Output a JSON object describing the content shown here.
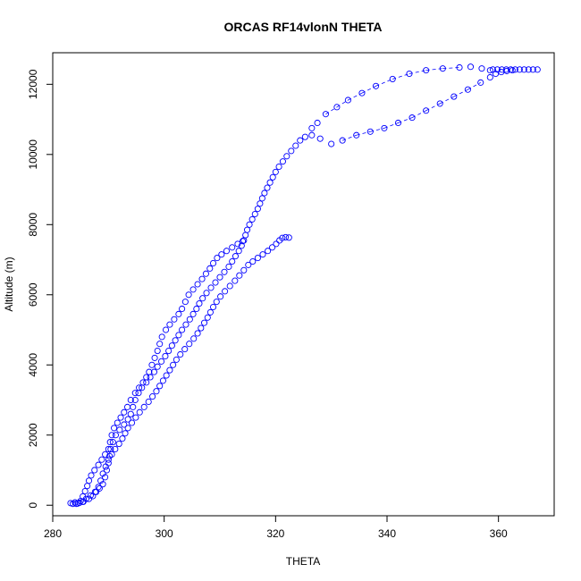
{
  "chart_data": {
    "type": "scatter",
    "title": "ORCAS RF14vlonN THETA",
    "xlabel": "THETA",
    "ylabel": "Altitude (m)",
    "xlim": [
      280,
      370
    ],
    "ylim": [
      -300,
      12900
    ],
    "xticks": [
      280,
      300,
      320,
      340,
      360
    ],
    "yticks": [
      0,
      2000,
      4000,
      6000,
      8000,
      10000,
      12000
    ],
    "grid": false,
    "marker": "open-circle",
    "color": "#0000ff",
    "series": [
      {
        "points": [
          [
            283.2,
            60
          ],
          [
            283.6,
            40
          ],
          [
            284.0,
            80
          ],
          [
            284.5,
            50
          ],
          [
            285.0,
            120
          ],
          [
            285.4,
            250
          ],
          [
            285.8,
            400
          ],
          [
            286.2,
            550
          ],
          [
            286.5,
            700
          ],
          [
            286.9,
            850
          ],
          [
            287.5,
            1000
          ],
          [
            288.2,
            1150
          ],
          [
            288.8,
            1300
          ],
          [
            289.4,
            1450
          ],
          [
            290.0,
            1600
          ],
          [
            290.3,
            1800
          ],
          [
            290.6,
            2000
          ],
          [
            291.0,
            2200
          ],
          [
            291.6,
            2350
          ],
          [
            292.2,
            2500
          ],
          [
            292.8,
            2650
          ],
          [
            293.4,
            2800
          ],
          [
            294.0,
            3000
          ],
          [
            294.8,
            3200
          ],
          [
            295.5,
            3350
          ],
          [
            296.2,
            3500
          ],
          [
            296.8,
            3650
          ],
          [
            297.3,
            3800
          ],
          [
            297.8,
            4000
          ],
          [
            298.3,
            4200
          ],
          [
            298.8,
            4400
          ],
          [
            299.2,
            4600
          ],
          [
            299.6,
            4800
          ],
          [
            300.3,
            5000
          ],
          [
            301.0,
            5150
          ],
          [
            301.8,
            5300
          ],
          [
            302.6,
            5450
          ],
          [
            303.2,
            5600
          ],
          [
            303.8,
            5800
          ],
          [
            304.4,
            6000
          ],
          [
            305.2,
            6150
          ],
          [
            306.0,
            6300
          ],
          [
            306.8,
            6450
          ],
          [
            307.5,
            6600
          ],
          [
            308.2,
            6750
          ],
          [
            308.8,
            6900
          ],
          [
            309.5,
            7050
          ],
          [
            310.3,
            7150
          ],
          [
            311.2,
            7250
          ],
          [
            312.2,
            7350
          ],
          [
            313.2,
            7450
          ],
          [
            314.1,
            7530
          ]
        ]
      },
      {
        "points": [
          [
            284.2,
            40
          ],
          [
            284.8,
            70
          ],
          [
            285.4,
            100
          ],
          [
            286.0,
            180
          ],
          [
            286.8,
            280
          ],
          [
            287.6,
            380
          ],
          [
            288.4,
            480
          ],
          [
            289.0,
            600
          ],
          [
            289.4,
            800
          ],
          [
            289.7,
            1000
          ],
          [
            290.0,
            1200
          ],
          [
            290.2,
            1400
          ],
          [
            290.4,
            1600
          ],
          [
            290.8,
            1800
          ],
          [
            291.3,
            2000
          ],
          [
            292.0,
            2150
          ],
          [
            292.8,
            2300
          ],
          [
            293.5,
            2450
          ],
          [
            294.0,
            2600
          ],
          [
            294.4,
            2800
          ],
          [
            294.8,
            3000
          ],
          [
            295.4,
            3200
          ],
          [
            296.0,
            3350
          ],
          [
            296.8,
            3500
          ],
          [
            297.5,
            3650
          ],
          [
            298.2,
            3800
          ],
          [
            298.8,
            3950
          ],
          [
            299.5,
            4100
          ],
          [
            300.2,
            4250
          ],
          [
            300.8,
            4400
          ],
          [
            301.4,
            4550
          ],
          [
            302.0,
            4700
          ],
          [
            302.6,
            4850
          ],
          [
            303.2,
            5000
          ],
          [
            303.9,
            5150
          ],
          [
            304.6,
            5300
          ],
          [
            305.2,
            5450
          ],
          [
            305.8,
            5600
          ],
          [
            306.3,
            5750
          ],
          [
            306.9,
            5900
          ],
          [
            307.6,
            6050
          ],
          [
            308.4,
            6200
          ],
          [
            309.2,
            6350
          ],
          [
            310.0,
            6500
          ],
          [
            310.8,
            6650
          ],
          [
            311.6,
            6800
          ],
          [
            312.2,
            6950
          ],
          [
            312.8,
            7100
          ],
          [
            313.4,
            7250
          ],
          [
            313.9,
            7400
          ],
          [
            314.3,
            7550
          ],
          [
            314.6,
            7700
          ],
          [
            314.9,
            7850
          ],
          [
            315.3,
            8000
          ],
          [
            315.8,
            8150
          ],
          [
            316.3,
            8300
          ],
          [
            316.8,
            8450
          ],
          [
            317.2,
            8600
          ],
          [
            317.6,
            8750
          ],
          [
            318.0,
            8900
          ],
          [
            318.5,
            9050
          ],
          [
            319.0,
            9200
          ],
          [
            319.5,
            9350
          ],
          [
            320.0,
            9500
          ],
          [
            320.6,
            9650
          ],
          [
            321.3,
            9800
          ],
          [
            322.0,
            9950
          ],
          [
            322.8,
            10100
          ],
          [
            323.6,
            10250
          ],
          [
            324.4,
            10400
          ],
          [
            325.3,
            10500
          ],
          [
            326.5,
            10550
          ],
          [
            328.0,
            10450
          ],
          [
            330.0,
            10300
          ],
          [
            332.0,
            10400
          ],
          [
            334.5,
            10550
          ],
          [
            337.0,
            10650
          ],
          [
            339.5,
            10750
          ],
          [
            342.0,
            10900
          ],
          [
            344.5,
            11050
          ],
          [
            347.0,
            11250
          ],
          [
            349.5,
            11450
          ],
          [
            352.0,
            11650
          ],
          [
            354.5,
            11850
          ],
          [
            356.8,
            12050
          ],
          [
            358.5,
            12200
          ],
          [
            359.5,
            12300
          ],
          [
            360.5,
            12350
          ],
          [
            361.5,
            12380
          ],
          [
            362.5,
            12400
          ]
        ]
      },
      {
        "points": [
          [
            285.5,
            100
          ],
          [
            286.5,
            180
          ],
          [
            287.2,
            260
          ],
          [
            287.8,
            380
          ],
          [
            288.2,
            520
          ],
          [
            288.6,
            700
          ],
          [
            289.0,
            900
          ],
          [
            289.5,
            1100
          ],
          [
            290.0,
            1300
          ],
          [
            290.6,
            1450
          ],
          [
            291.2,
            1600
          ],
          [
            291.9,
            1750
          ],
          [
            292.5,
            1900
          ],
          [
            293.0,
            2050
          ],
          [
            293.5,
            2200
          ],
          [
            294.2,
            2350
          ],
          [
            294.9,
            2500
          ],
          [
            295.6,
            2650
          ],
          [
            296.4,
            2800
          ],
          [
            297.2,
            2950
          ],
          [
            297.9,
            3100
          ],
          [
            298.6,
            3250
          ],
          [
            299.2,
            3400
          ],
          [
            299.8,
            3550
          ],
          [
            300.4,
            3700
          ],
          [
            301.0,
            3850
          ],
          [
            301.6,
            4000
          ],
          [
            302.2,
            4150
          ],
          [
            302.9,
            4300
          ],
          [
            303.7,
            4450
          ],
          [
            304.5,
            4600
          ],
          [
            305.3,
            4750
          ],
          [
            306.0,
            4900
          ],
          [
            306.6,
            5050
          ],
          [
            307.2,
            5200
          ],
          [
            307.8,
            5350
          ],
          [
            308.3,
            5500
          ],
          [
            308.8,
            5650
          ],
          [
            309.4,
            5800
          ],
          [
            310.1,
            5950
          ],
          [
            310.9,
            6100
          ],
          [
            311.8,
            6250
          ],
          [
            312.7,
            6400
          ],
          [
            313.5,
            6550
          ],
          [
            314.3,
            6700
          ],
          [
            315.1,
            6850
          ],
          [
            315.9,
            6950
          ],
          [
            316.8,
            7050
          ],
          [
            317.7,
            7150
          ],
          [
            318.6,
            7250
          ],
          [
            319.4,
            7350
          ],
          [
            320.1,
            7450
          ],
          [
            320.7,
            7550
          ],
          [
            321.2,
            7620
          ],
          [
            321.8,
            7640
          ],
          [
            322.4,
            7630
          ]
        ]
      },
      {
        "points": [
          [
            326.5,
            10750
          ],
          [
            327.5,
            10900
          ],
          [
            329.0,
            11150
          ],
          [
            331.0,
            11350
          ],
          [
            333.0,
            11550
          ],
          [
            335.5,
            11750
          ],
          [
            338.0,
            11950
          ],
          [
            341.0,
            12150
          ],
          [
            344.0,
            12300
          ],
          [
            347.0,
            12400
          ],
          [
            350.0,
            12450
          ],
          [
            353.0,
            12480
          ],
          [
            355.0,
            12500
          ],
          [
            357.0,
            12450
          ],
          [
            358.5,
            12400
          ],
          [
            359.0,
            12420
          ],
          [
            359.8,
            12420
          ],
          [
            360.6,
            12420
          ],
          [
            361.4,
            12420
          ],
          [
            362.2,
            12420
          ],
          [
            363.0,
            12420
          ],
          [
            363.8,
            12420
          ],
          [
            364.6,
            12420
          ],
          [
            365.4,
            12420
          ],
          [
            366.2,
            12420
          ],
          [
            367.0,
            12420
          ]
        ]
      }
    ]
  }
}
